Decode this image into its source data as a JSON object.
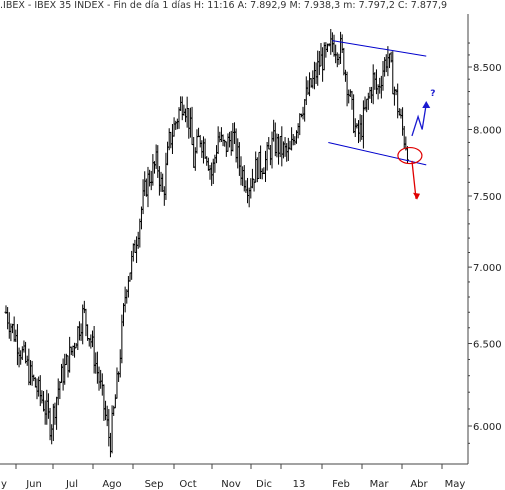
{
  "header": {
    "text": ".IBEX - IBEX 35 INDEX - Fin de día 1 días H: 11:16 A: 7.892,9 M: 7.938,3 m: 7.797,2 C: 7.877,9"
  },
  "chart_data": {
    "type": "ohlc",
    "title": ".IBEX - IBEX 35 INDEX - Fin de día 1 días H: 11:16 A: 7.892,9 M: 7.938,3 m: 7.797,2 C: 7.877,9",
    "xlabel": "",
    "ylabel": "",
    "ylim": [
      5850,
      8800
    ],
    "y_scale": "log",
    "y_axis_position": "right",
    "grid": false,
    "x_ticks": [
      "y",
      "Jun",
      "Jul",
      "Ago",
      "Sep",
      "Oct",
      "Nov",
      "Dic",
      "13",
      "Feb",
      "Mar",
      "Abr",
      "May"
    ],
    "y_ticks": [
      6000,
      6500,
      7000,
      7500,
      8000,
      8500
    ],
    "y_tick_labels": [
      "6.000",
      "6.500",
      "7.000",
      "7.500",
      "8.000",
      "8.500"
    ],
    "path_closes": [
      [
        0,
        6700
      ],
      [
        0.3,
        6500
      ],
      [
        0.6,
        6300
      ],
      [
        0.9,
        6150
      ],
      [
        1.1,
        6000
      ],
      [
        1.3,
        6250
      ],
      [
        1.6,
        6450
      ],
      [
        1.9,
        6700
      ],
      [
        2.1,
        6500
      ],
      [
        2.3,
        6250
      ],
      [
        2.55,
        5900
      ],
      [
        2.75,
        6300
      ],
      [
        2.95,
        6900
      ],
      [
        3.1,
        7050
      ],
      [
        3.25,
        7300
      ],
      [
        3.45,
        7600
      ],
      [
        3.7,
        7750
      ],
      [
        3.85,
        7500
      ],
      [
        4.0,
        7900
      ],
      [
        4.15,
        8050
      ],
      [
        4.35,
        8250
      ],
      [
        4.5,
        8050
      ],
      [
        4.6,
        7750
      ],
      [
        4.75,
        7950
      ],
      [
        4.9,
        7850
      ],
      [
        5.05,
        7650
      ],
      [
        5.2,
        7950
      ],
      [
        5.35,
        7850
      ],
      [
        5.55,
        7950
      ],
      [
        5.75,
        7700
      ],
      [
        5.95,
        7580
      ],
      [
        6.15,
        7720
      ],
      [
        6.35,
        7750
      ],
      [
        6.55,
        7900
      ],
      [
        6.75,
        7850
      ],
      [
        6.95,
        7800
      ],
      [
        7.1,
        8000
      ],
      [
        7.2,
        8150
      ],
      [
        7.35,
        8250
      ],
      [
        7.55,
        8400
      ],
      [
        7.7,
        8550
      ],
      [
        7.9,
        8600
      ],
      [
        8.0,
        8700
      ],
      [
        8.2,
        8650
      ],
      [
        8.3,
        8500
      ],
      [
        8.4,
        8300
      ],
      [
        8.5,
        8100
      ],
      [
        8.6,
        7950
      ],
      [
        8.7,
        8000
      ],
      [
        8.85,
        8200
      ],
      [
        9.0,
        8400
      ],
      [
        9.1,
        8300
      ],
      [
        9.25,
        8500
      ],
      [
        9.35,
        8600
      ],
      [
        9.5,
        8350
      ],
      [
        9.65,
        8100
      ],
      [
        9.75,
        7950
      ],
      [
        9.85,
        7850
      ]
    ],
    "annotations": {
      "channel_upper": [
        [
          8.0,
          8720
        ],
        [
          10.3,
          8590
        ]
      ],
      "channel_lower": [
        [
          7.9,
          7900
        ],
        [
          10.3,
          7730
        ]
      ],
      "support_circle_center": [
        9.9,
        7800
      ],
      "bearish_arrow": [
        [
          9.95,
          7760
        ],
        [
          10.05,
          7480
        ]
      ],
      "bullish_path": [
        [
          9.95,
          7950
        ],
        [
          10.1,
          8100
        ],
        [
          10.2,
          8000
        ],
        [
          10.3,
          8200
        ]
      ],
      "question_label": "?"
    },
    "colors": {
      "bars": "#000000",
      "channel": "#0000cc",
      "bullish": "#1a1ad0",
      "bearish": "#e00000",
      "axis": "#444444"
    }
  }
}
